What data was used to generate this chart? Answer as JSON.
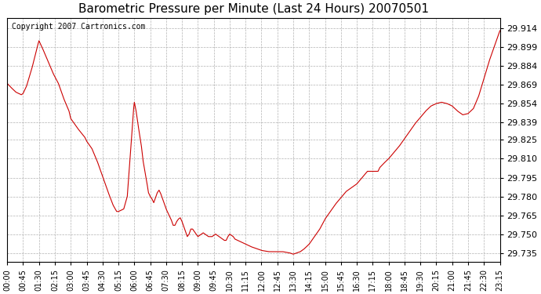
{
  "title": "Barometric Pressure per Minute (Last 24 Hours) 20070501",
  "copyright_text": "Copyright 2007 Cartronics.com",
  "line_color": "#cc0000",
  "background_color": "#ffffff",
  "grid_color": "#aaaaaa",
  "yticks": [
    29.735,
    29.75,
    29.765,
    29.78,
    29.795,
    29.81,
    29.825,
    29.839,
    29.854,
    29.869,
    29.884,
    29.899,
    29.914
  ],
  "ylim": [
    29.728,
    29.922
  ],
  "xtick_labels": [
    "00:00",
    "00:45",
    "01:30",
    "02:15",
    "03:00",
    "03:45",
    "04:30",
    "05:15",
    "06:00",
    "06:45",
    "07:30",
    "08:15",
    "09:00",
    "09:45",
    "10:30",
    "11:15",
    "12:00",
    "12:45",
    "13:30",
    "14:15",
    "15:00",
    "15:45",
    "16:30",
    "17:15",
    "18:00",
    "18:45",
    "19:30",
    "20:15",
    "21:00",
    "21:45",
    "22:30",
    "23:15"
  ],
  "key_points": {
    "t": [
      0,
      30,
      45,
      90,
      135,
      180,
      225,
      270,
      315,
      360,
      390,
      405,
      420,
      450,
      480,
      510,
      540,
      570,
      600,
      630,
      660,
      690,
      720,
      750,
      780,
      810,
      840,
      870,
      900,
      960,
      1020,
      1080,
      1140,
      1200,
      1260,
      1320,
      1380,
      1395
    ],
    "v": [
      29.87,
      29.862,
      29.862,
      29.904,
      29.87,
      29.838,
      29.82,
      29.768,
      29.768,
      29.855,
      29.84,
      29.78,
      29.765,
      29.78,
      29.76,
      29.748,
      29.748,
      29.75,
      29.748,
      29.75,
      29.748,
      29.744,
      29.74,
      29.736,
      29.735,
      29.734,
      29.748,
      29.75,
      29.762,
      29.785,
      29.795,
      29.8,
      29.855,
      29.845,
      29.862,
      29.865,
      29.905,
      29.914
    ]
  }
}
